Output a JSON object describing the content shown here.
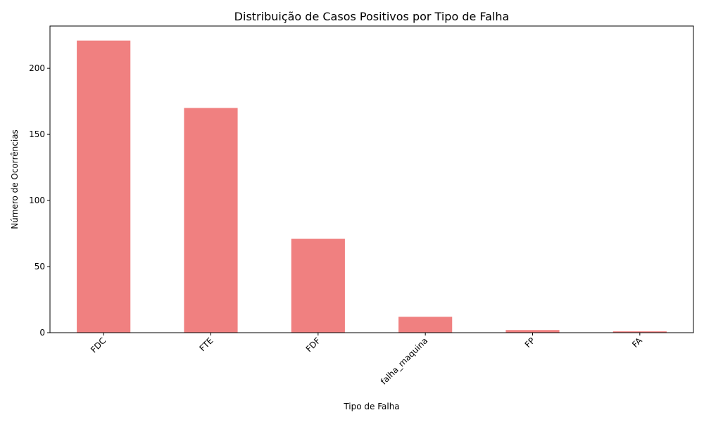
{
  "chart_data": {
    "type": "bar",
    "title": "Distribuição de Casos Positivos por Tipo de Falha",
    "xlabel": "Tipo de Falha",
    "ylabel": "Número de Ocorrências",
    "categories": [
      "FDC",
      "FTE",
      "FDF",
      "falha_maquina",
      "FP",
      "FA"
    ],
    "values": [
      221,
      170,
      71,
      12,
      2,
      1
    ],
    "ylim": [
      0,
      232
    ],
    "yticks": [
      0,
      50,
      100,
      150,
      200
    ],
    "grid": false,
    "bar_color": "#f08080"
  }
}
